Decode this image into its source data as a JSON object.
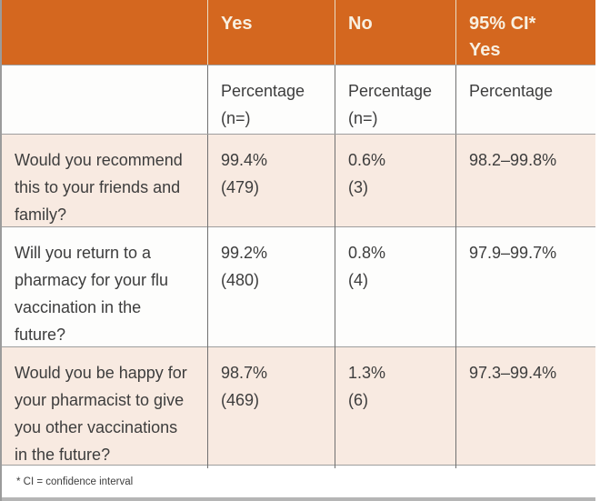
{
  "table": {
    "header": {
      "col0": "",
      "yes": "Yes",
      "no": "No",
      "ci": "95% CI*\nYes"
    },
    "subheader": {
      "yes": "Percentage\n(n=)",
      "no": "Percentage\n(n=)",
      "ci": "Percentage"
    },
    "rows": [
      {
        "question": "Would you recommend this to your friends and family?",
        "yes": "99.4%\n(479)",
        "no": "0.6%\n(3)",
        "ci": "98.2–99.8%"
      },
      {
        "question": "Will you return to a pharmacy for your flu vaccination in the future?",
        "yes": "99.2%\n(480)",
        "no": "0.8%\n(4)",
        "ci": "97.9–99.7%"
      },
      {
        "question": "Would you be happy for your pharmacist to give you other vaccinations in the future?",
        "yes": "98.7%\n(469)",
        "no": "1.3%\n(6)",
        "ci": "97.3–99.4%"
      }
    ],
    "footnote": "* CI = confidence interval"
  },
  "colors": {
    "header_bg": "#d4671f",
    "header_text": "#f8f0e1",
    "row_alt_bg": "#f8eae1",
    "row_bg": "#fdfdfc",
    "border_gray": "#9e9e9e",
    "text": "#3d3d3d"
  },
  "chart_data": {
    "type": "table",
    "columns": [
      "",
      "Yes — Percentage (n=)",
      "No — Percentage (n=)",
      "95% CI* Yes — Percentage"
    ],
    "rows": [
      [
        "Would you recommend this to your friends and family?",
        "99.4% (479)",
        "0.6% (3)",
        "98.2–99.8%"
      ],
      [
        "Will you return to a pharmacy for your flu vaccination in the future?",
        "99.2% (480)",
        "0.8% (4)",
        "97.9–99.7%"
      ],
      [
        "Would you be happy for your pharmacist to give you other vaccinations in the future?",
        "98.7% (469)",
        "1.3% (6)",
        "97.3–99.4%"
      ]
    ],
    "footnote": "* CI = confidence interval"
  }
}
